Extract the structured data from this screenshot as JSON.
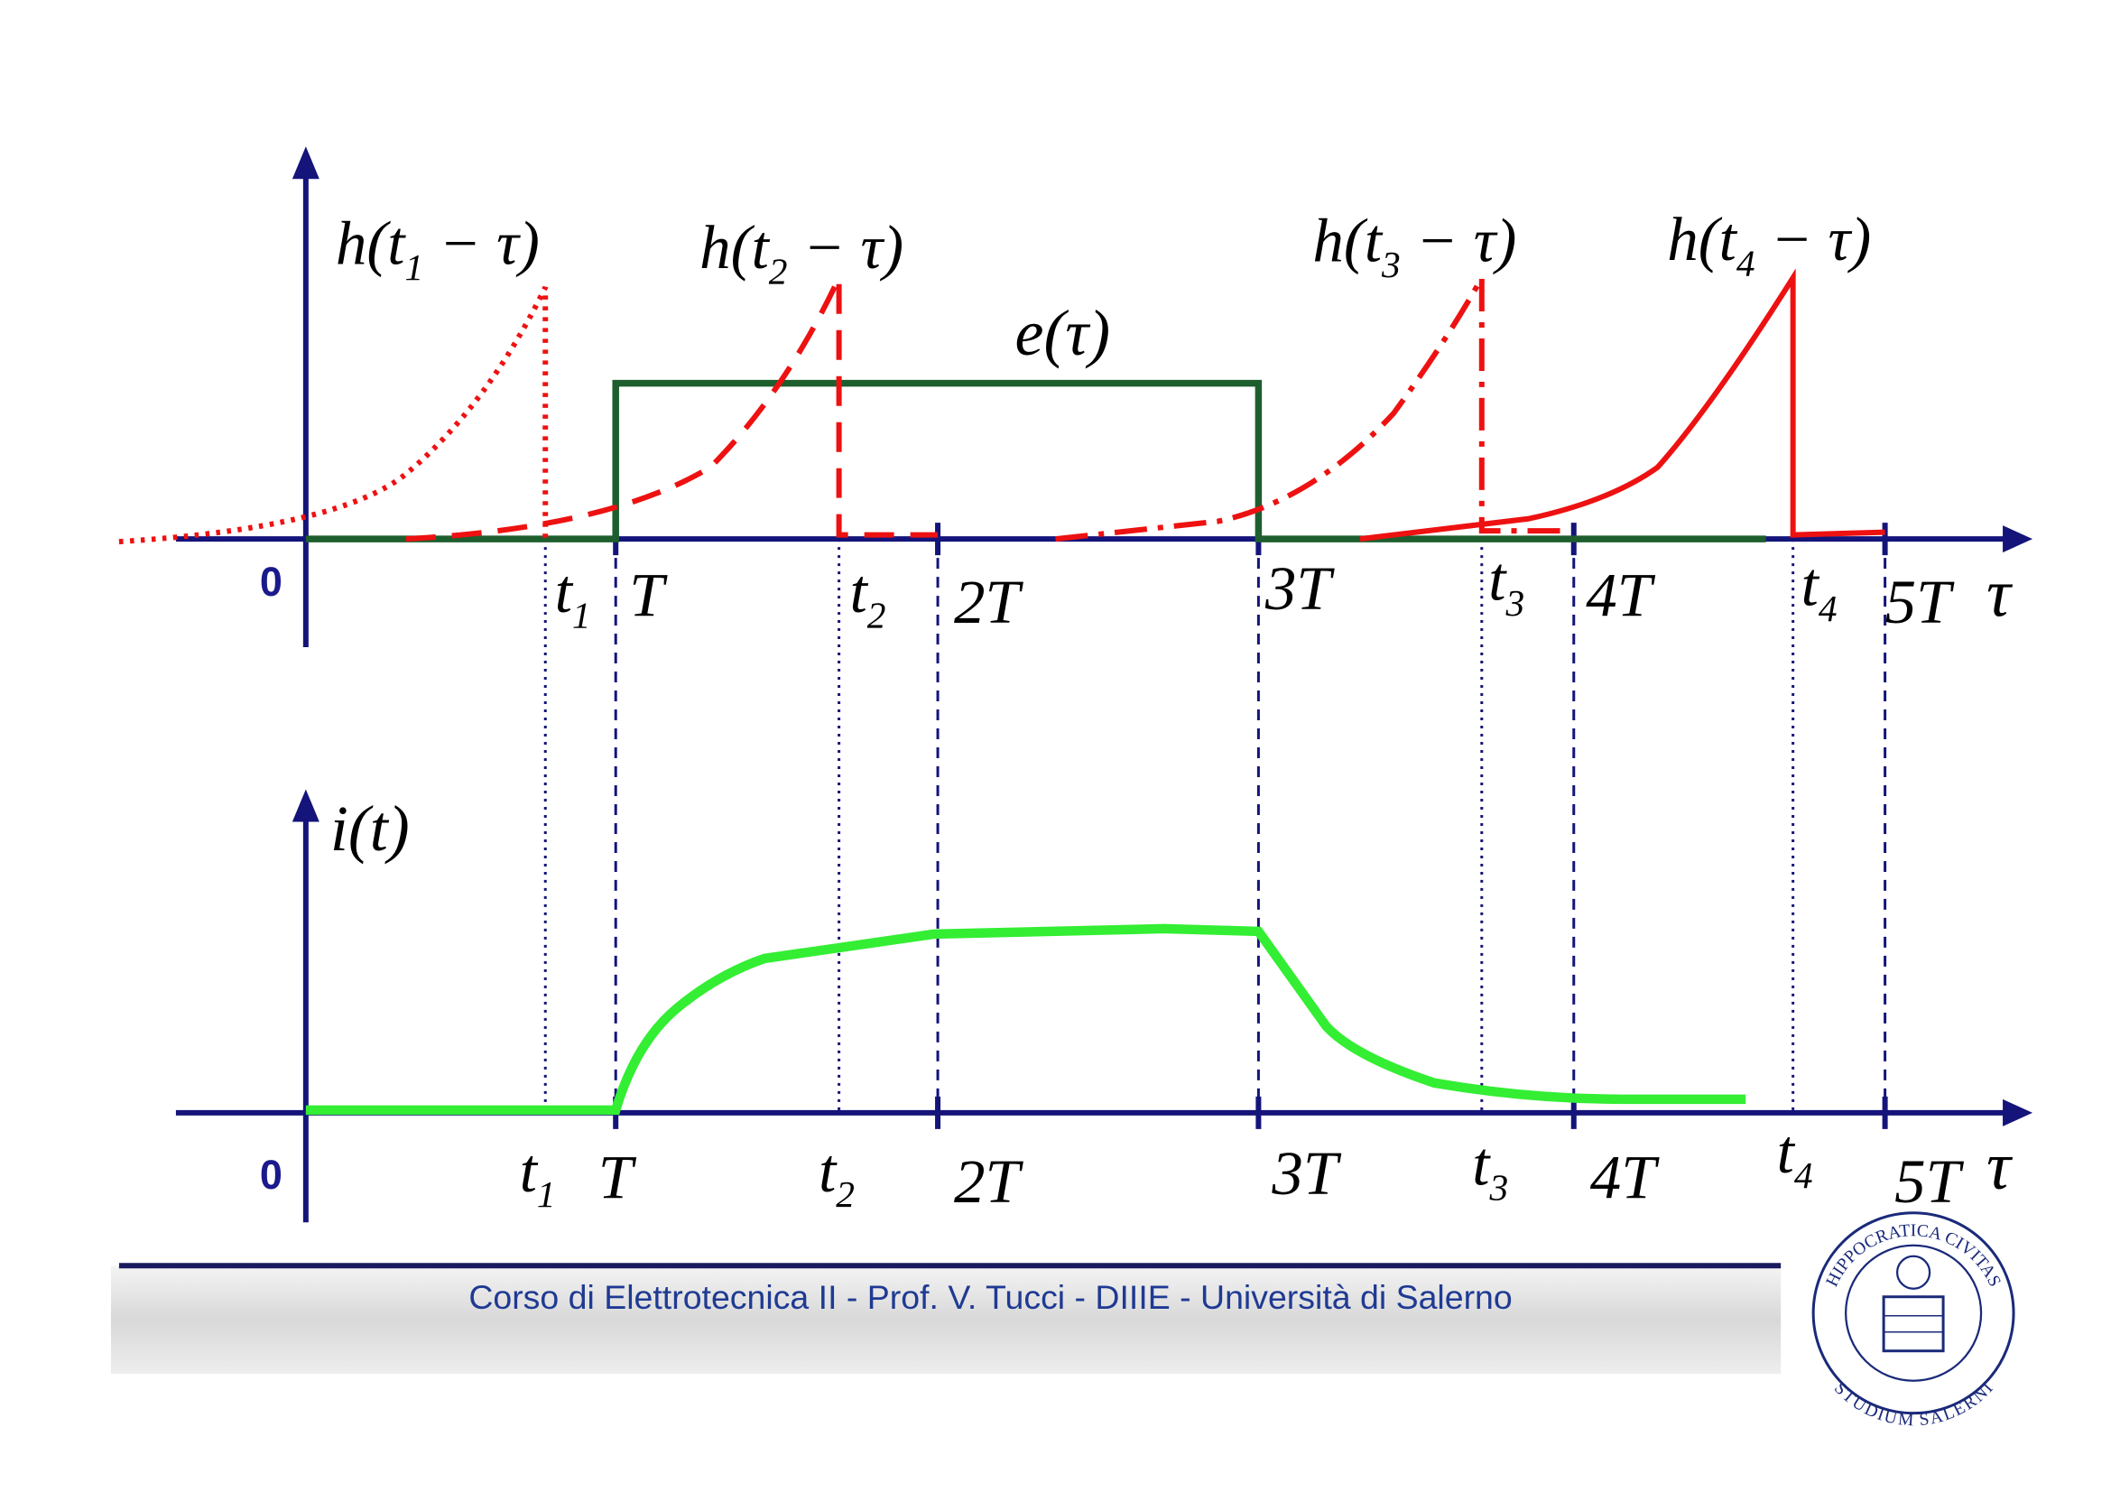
{
  "curve_labels": [
    {
      "text": "h(t",
      "sub": "1",
      "tail": " − τ)"
    },
    {
      "text": "h(t",
      "sub": "2",
      "tail": " − τ)"
    },
    {
      "text": "h(t",
      "sub": "3",
      "tail": " − τ)"
    },
    {
      "text": "h(t",
      "sub": "4",
      "tail": " − τ)"
    }
  ],
  "input_label": "e(τ)",
  "output_label": "i(t)",
  "origin_label": "0",
  "axis_name": "τ",
  "ticks": [
    {
      "text": "t",
      "sub": "1"
    },
    {
      "text": "T"
    },
    {
      "text": "t",
      "sub": "2"
    },
    {
      "text": "2T"
    },
    {
      "text": "3T"
    },
    {
      "text": "t",
      "sub": "3"
    },
    {
      "text": "4T"
    },
    {
      "text": "t",
      "sub": "4"
    },
    {
      "text": "5T"
    }
  ],
  "footer": "Corso di Elettrotecnica II - Prof. V. Tucci - DIIIE - Università di Salerno",
  "logo": {
    "top": "HIPPOCRATICA CIVITAS",
    "bottom": "STUDIUM SALERNI"
  }
}
